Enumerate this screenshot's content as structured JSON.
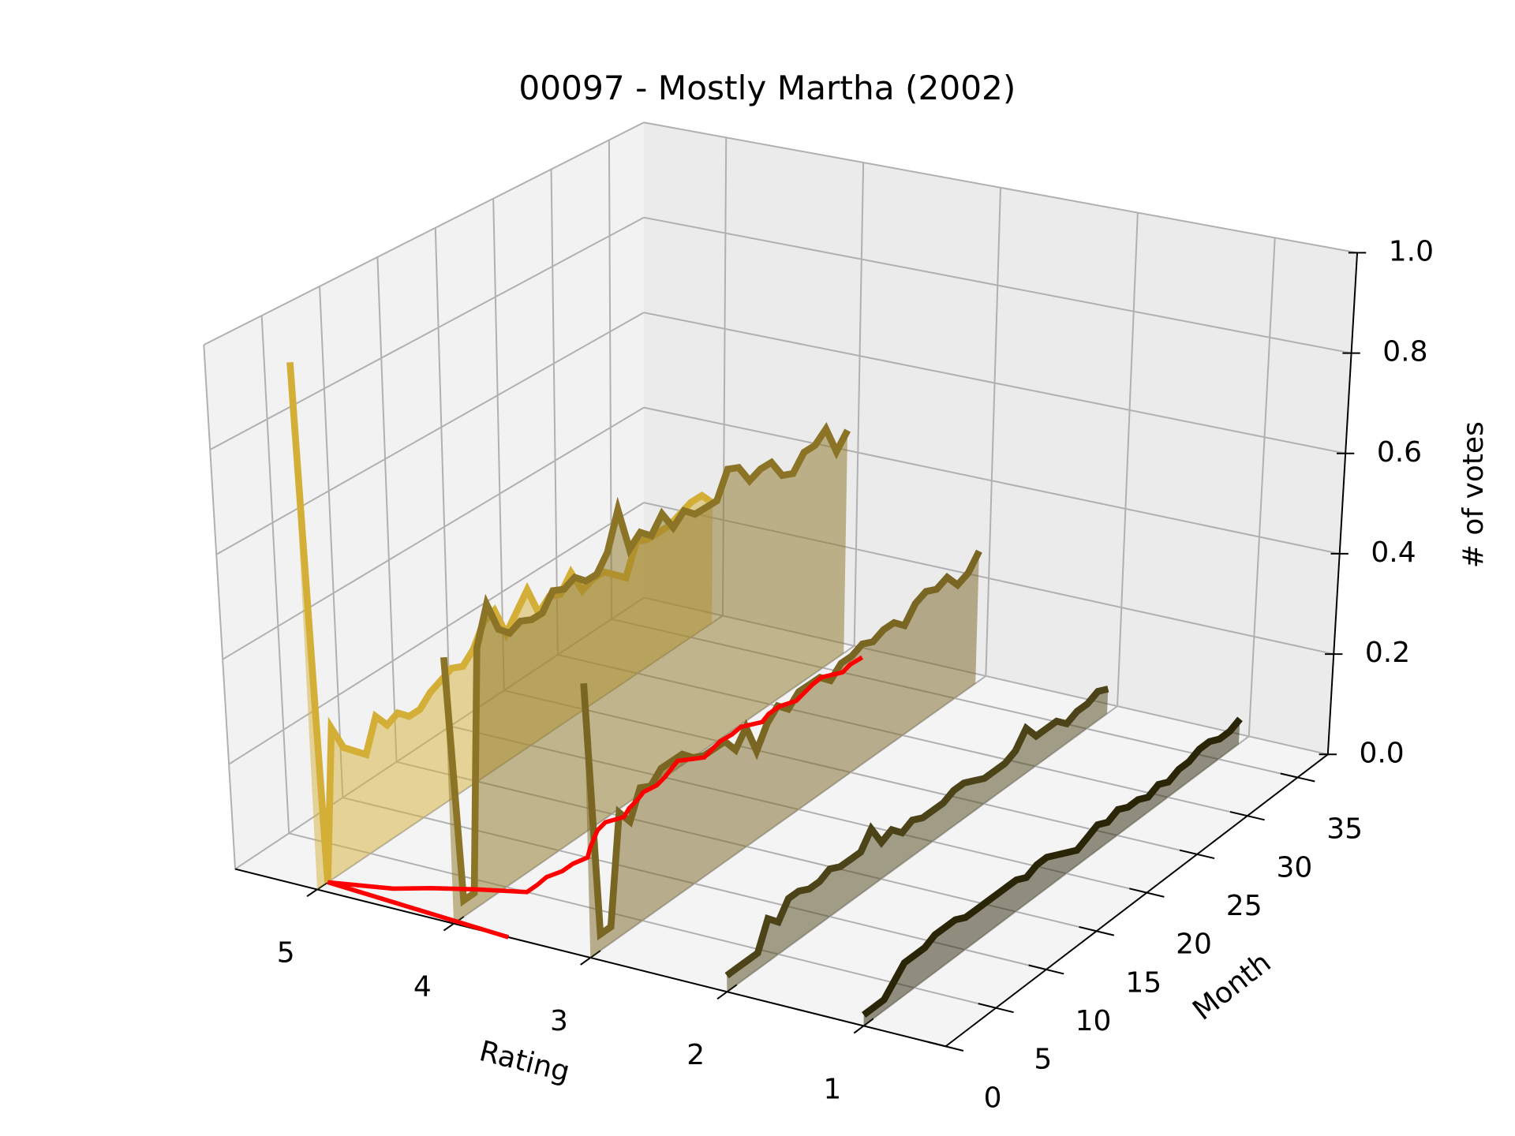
{
  "chart_data": {
    "type": "line3d",
    "title": "00097 - Mostly Martha (2002)",
    "xlabel": "Rating",
    "ylabel": "Month",
    "zlabel": "# of votes",
    "xlim": [
      0.4,
      5.6
    ],
    "xticks": [
      1,
      2,
      3,
      4,
      5
    ],
    "ylim": [
      0,
      38
    ],
    "yticks": [
      0,
      5,
      10,
      15,
      20,
      25,
      30,
      35
    ],
    "zlim": [
      0,
      1
    ],
    "zticks": [
      {
        "value": 0,
        "label": "0.0"
      },
      0.2,
      0.4,
      0.6,
      0.8,
      {
        "value": 1,
        "label": "1.0"
      }
    ],
    "grid": true,
    "x": [
      0,
      1,
      2,
      3,
      4,
      5,
      6,
      7,
      8,
      9,
      10,
      11,
      12,
      13,
      14,
      15,
      16,
      17,
      18,
      19,
      20,
      21,
      22,
      23,
      24,
      25,
      26,
      27,
      28,
      29,
      30,
      31,
      32,
      33,
      34,
      35,
      36,
      37
    ],
    "series": [
      {
        "rating": 5,
        "color": "#d4af37",
        "values": [
          1.0,
          0,
          0.28,
          0.23,
          0.21,
          0.19,
          0.25,
          0.22,
          0.23,
          0.21,
          0.21,
          0.23,
          0.24,
          0.25,
          0.24,
          0.26,
          0.3,
          0.31,
          0.25,
          0.28,
          0.31,
          0.25,
          0.27,
          0.26,
          0.29,
          0.24,
          0.25,
          0.25,
          0.23,
          0.21,
          0.27,
          0.26,
          0.26,
          0.26,
          0.27,
          0.28,
          0.28,
          0.25
        ]
      },
      {
        "rating": 4,
        "color": "#8b7426",
        "values": [
          0.5,
          0.03,
          0.03,
          0.48,
          0.55,
          0.49,
          0.47,
          0.48,
          0.47,
          0.47,
          0.5,
          0.49,
          0.5,
          0.48,
          0.48,
          0.51,
          0.58,
          0.49,
          0.51,
          0.49,
          0.52,
          0.48,
          0.5,
          0.48,
          0.48,
          0.48,
          0.53,
          0.52,
          0.48,
          0.49,
          0.49,
          0.45,
          0.44,
          0.47,
          0.47,
          0.49,
          0.43,
          0.46
        ]
      },
      {
        "rating": 3,
        "color": "#7a6623",
        "values": [
          0.51,
          0.03,
          0.03,
          0.23,
          0.2,
          0.25,
          0.24,
          0.26,
          0.26,
          0.26,
          0.24,
          0.23,
          0.23,
          0.23,
          0.2,
          0.23,
          0.17,
          0.21,
          0.23,
          0.21,
          0.23,
          0.23,
          0.23,
          0.21,
          0.23,
          0.23,
          0.24,
          0.23,
          0.24,
          0.24,
          0.22,
          0.25,
          0.26,
          0.25,
          0.26,
          0.23,
          0.24,
          0.27
        ]
      },
      {
        "rating": 2,
        "color": "#4d4318",
        "values": [
          0.03,
          0.03,
          0.03,
          0.03,
          0.08,
          0.06,
          0.09,
          0.09,
          0.08,
          0.08,
          0.09,
          0.08,
          0.08,
          0.08,
          0.11,
          0.07,
          0.08,
          0.06,
          0.07,
          0.06,
          0.06,
          0.06,
          0.07,
          0.07,
          0.06,
          0.05,
          0.05,
          0.05,
          0.06,
          0.09,
          0.06,
          0.06,
          0.06,
          0.04,
          0.05,
          0.05,
          0.06,
          0.05
        ]
      },
      {
        "rating": 1,
        "color": "#2b2508",
        "values": [
          0.02,
          0.02,
          0.02,
          0.04,
          0.06,
          0.06,
          0.06,
          0.07,
          0.07,
          0.07,
          0.06,
          0.06,
          0.06,
          0.06,
          0.06,
          0.06,
          0.05,
          0.06,
          0.06,
          0.05,
          0.04,
          0.03,
          0.04,
          0.05,
          0.04,
          0.05,
          0.04,
          0.04,
          0.03,
          0.04,
          0.03,
          0.04,
          0.04,
          0.05,
          0.05,
          0.04,
          0.04,
          0.05
        ]
      }
    ],
    "floor_line": {
      "color": "#ff0000",
      "values": [
        3.6,
        5.0,
        4.6,
        4.4,
        4.15,
        3.85,
        3.85,
        3.86,
        3.82,
        3.82,
        3.79,
        3.85,
        3.9,
        3.95,
        3.97,
        3.91,
        3.95,
        3.97,
        4.0,
        3.98,
        4.0,
        4.03,
        4.06,
        3.94,
        3.96,
        3.98,
        3.97,
        3.98,
        3.9,
        3.93,
        3.93,
        3.88,
        3.9,
        3.92,
        3.93,
        3.85,
        3.87,
        3.86
      ]
    }
  }
}
